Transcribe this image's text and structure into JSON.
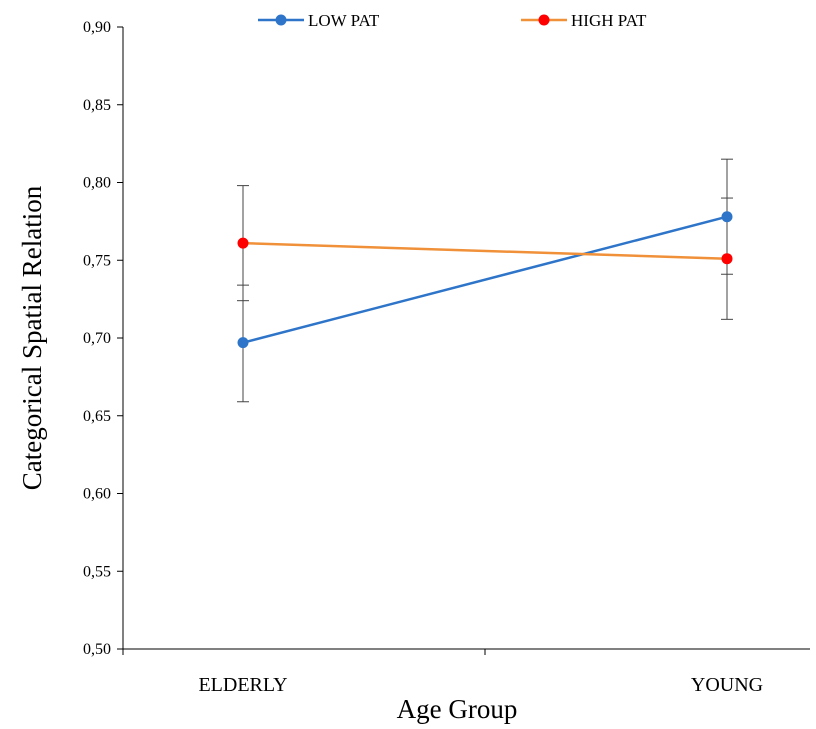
{
  "chart_data": {
    "type": "line",
    "title": "",
    "xlabel": "Age Group",
    "ylabel": "Categorical  Spatial Relation",
    "categories": [
      "ELDERLY",
      "YOUNG"
    ],
    "ylim": [
      0.5,
      0.9
    ],
    "yticks": [
      0.5,
      0.55,
      0.6,
      0.65,
      0.7,
      0.75,
      0.8,
      0.85,
      0.9
    ],
    "ytick_labels": [
      "0,50",
      "0,55",
      "0,60",
      "0,65",
      "0,70",
      "0,75",
      "0,80",
      "0,85",
      "0,90"
    ],
    "grid": false,
    "legend_position": "top-center",
    "series": [
      {
        "name": "LOW PAT",
        "color": "#2E75C9",
        "values": [
          0.697,
          0.778
        ],
        "error_low": [
          0.659,
          0.741
        ],
        "error_high": [
          0.734,
          0.815
        ]
      },
      {
        "name": "HIGH PAT",
        "color": "#F0913A",
        "marker_color": "#FF0000",
        "values": [
          0.761,
          0.751
        ],
        "error_low": [
          0.724,
          0.712
        ],
        "error_high": [
          0.798,
          0.79
        ]
      }
    ]
  }
}
